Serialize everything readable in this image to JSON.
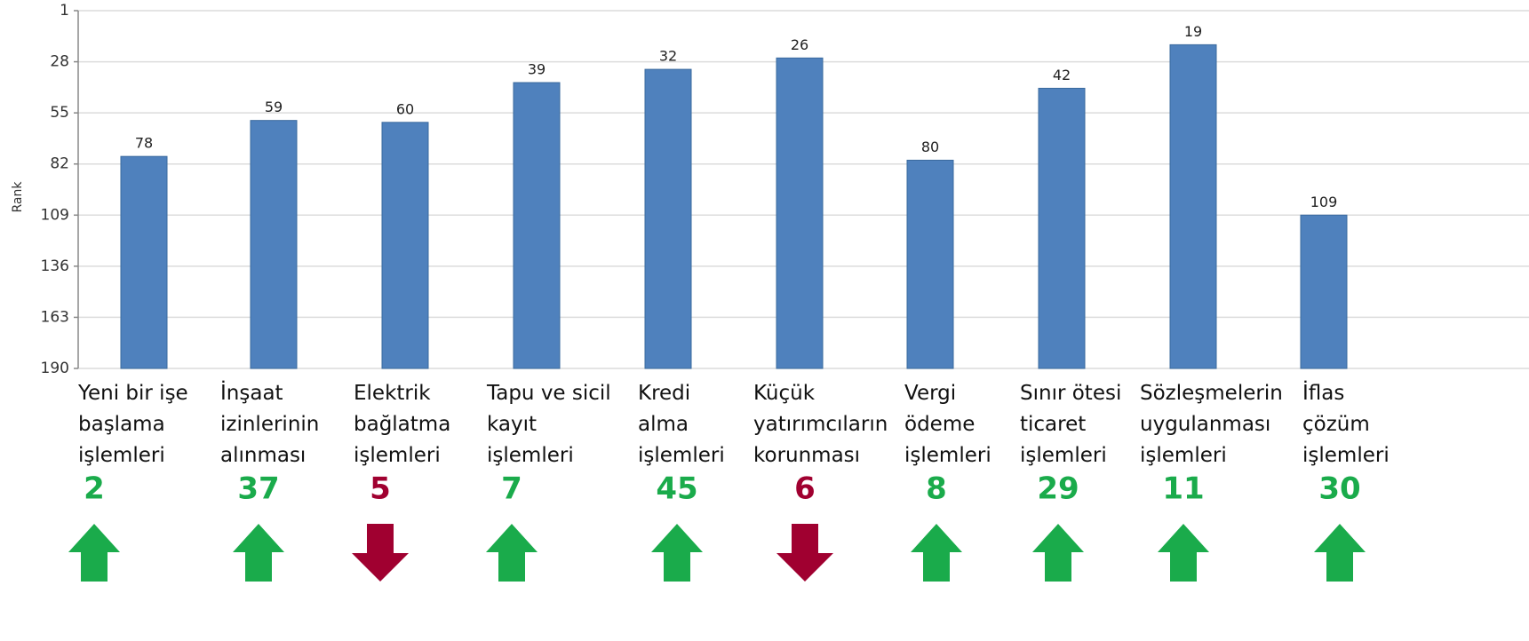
{
  "chart_data": {
    "type": "bar",
    "y_label": "Rank",
    "categories": [
      "Yeni bir işe\nbaşlama\nişlemleri",
      "İnşaat\nizinlerinin\nalınması",
      "Elektrik\nbağlatma\nişlemleri",
      "Tapu ve sicil\nkayıt\nişlemleri",
      "Kredi\nalma\nişlemleri",
      "Küçük\nyatırımcıların\nkorunması",
      "Vergi\nödeme\nişlemleri",
      "Sınır ötesi\nticaret\nişlemleri",
      "Sözleşmelerin\nuygulanması\nişlemleri",
      "İflas\nçözüm\nişlemleri"
    ],
    "values": [
      78,
      59,
      60,
      39,
      32,
      26,
      80,
      42,
      19,
      109
    ],
    "color": "#4f81bd",
    "ylim": [
      1,
      190
    ],
    "inverted": true,
    "yticks": [
      1,
      28,
      55,
      82,
      109,
      136,
      163,
      190
    ],
    "grid": true,
    "changes": {
      "values": [
        2,
        37,
        5,
        7,
        45,
        6,
        8,
        29,
        11,
        30
      ],
      "directions": [
        "up",
        "up",
        "down",
        "up",
        "up",
        "down",
        "up",
        "up",
        "up",
        "up"
      ],
      "colors": {
        "up": "#1aab4b",
        "down": "#a00030"
      }
    }
  }
}
